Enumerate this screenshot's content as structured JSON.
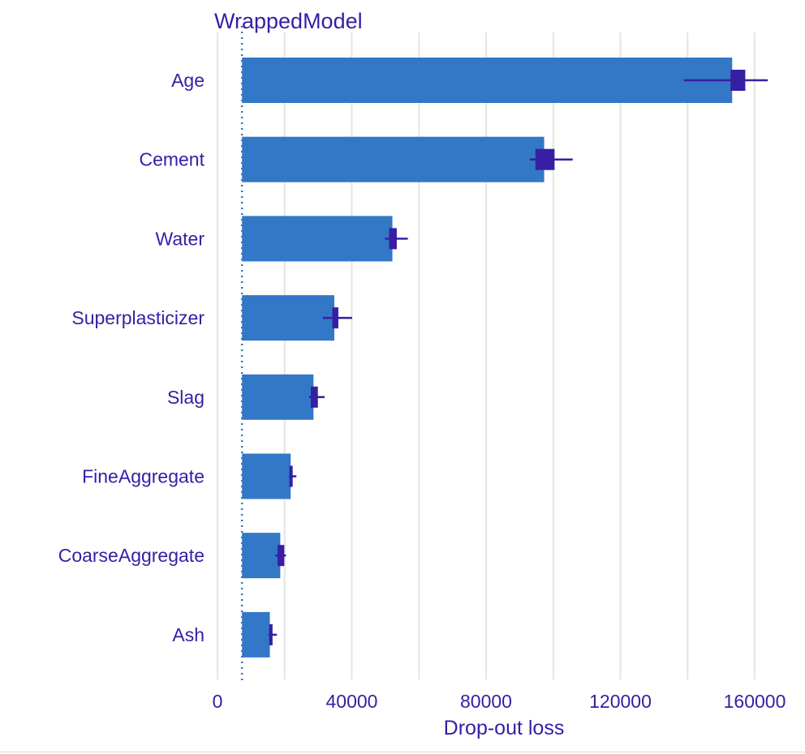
{
  "chart_data": {
    "type": "bar",
    "orientation": "horizontal",
    "title": "WrappedModel",
    "xlabel": "Drop-out loss",
    "ylabel": "",
    "xlim": [
      0,
      170000
    ],
    "xticks": [
      0,
      40000,
      80000,
      120000,
      160000
    ],
    "xtick_labels": [
      "0",
      "40000",
      "80000",
      "120000",
      "160000"
    ],
    "baseline": 7300,
    "categories": [
      "Age",
      "Cement",
      "Water",
      "Superplasticizer",
      "Slag",
      "FineAggregate",
      "CoarseAggregate",
      "Ash"
    ],
    "values": [
      153300,
      97300,
      52100,
      34800,
      28600,
      21800,
      18700,
      15600
    ],
    "boxplot": [
      {
        "min": 138900,
        "q1": 152800,
        "q3": 157200,
        "max": 163900
      },
      {
        "min": 93000,
        "q1": 94700,
        "q3": 100400,
        "max": 105800
      },
      {
        "min": 49900,
        "q1": 51100,
        "q3": 53400,
        "max": 56700
      },
      {
        "min": 31400,
        "q1": 34200,
        "q3": 36000,
        "max": 40100
      },
      {
        "min": 27300,
        "q1": 27800,
        "q3": 29900,
        "max": 31900
      },
      {
        "min": 21300,
        "q1": 21400,
        "q3": 22400,
        "max": 23500
      },
      {
        "min": 17200,
        "q1": 17900,
        "q3": 19900,
        "max": 20400
      },
      {
        "min": 15200,
        "q1": 15400,
        "q3": 16400,
        "max": 17700
      }
    ],
    "grid": true,
    "legend": "none",
    "colors": {
      "bar": "#3278c7",
      "text": "#371ea3",
      "boxplot": "#371ea3",
      "grid": "#e6e6e6",
      "baseline": "#3278c7"
    }
  }
}
